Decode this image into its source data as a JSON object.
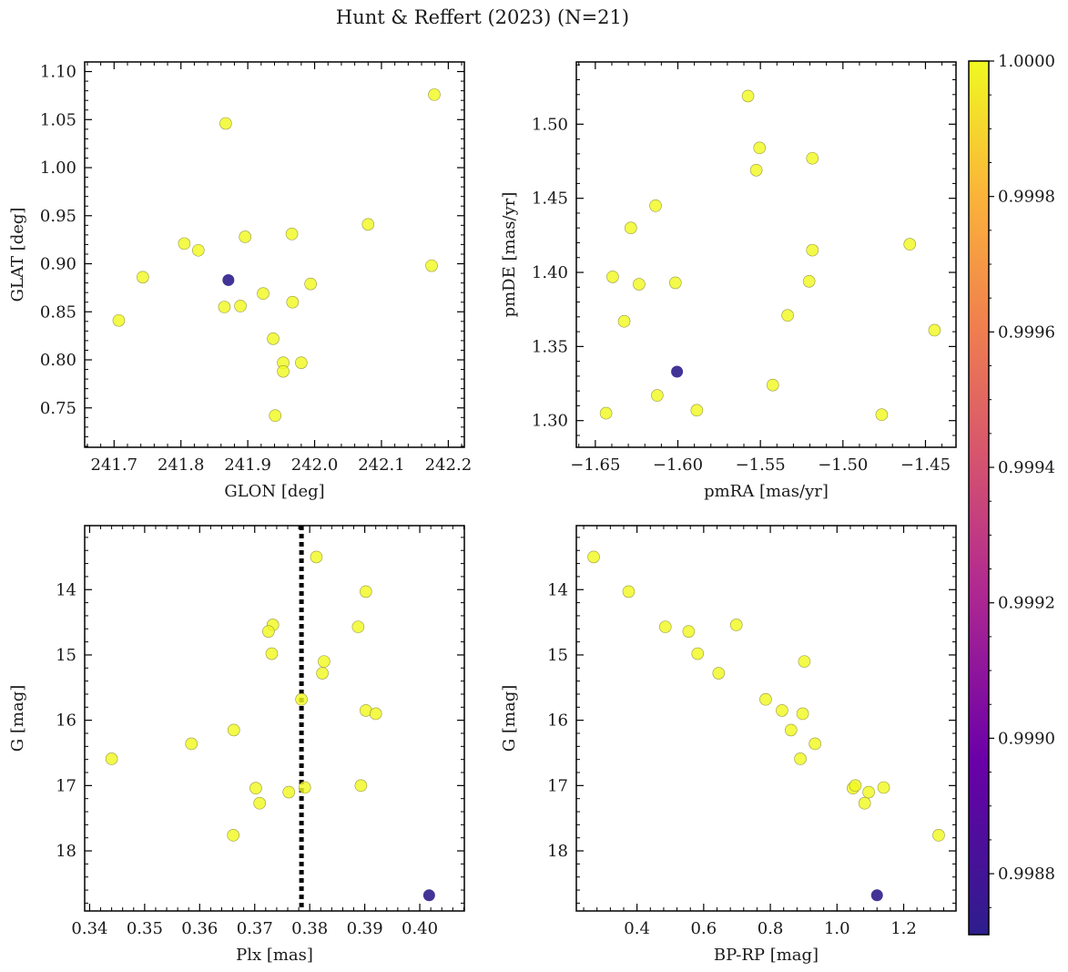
{
  "title": "Hunt & Reffert (2023) (N=21)",
  "colors": {
    "yellow": "#f0f921",
    "purple": "#2d1e8c",
    "point_edge": "#9a9a40",
    "dotted_line": "#000000",
    "colormap": "plasma"
  },
  "colorbar": {
    "min": 0.99871,
    "max": 1.0,
    "ticks": [
      0.9988,
      0.999,
      0.9992,
      0.9994,
      0.9996,
      0.9998,
      1.0
    ],
    "tick_labels": [
      "0.9988",
      "0.9990",
      "0.9992",
      "0.9994",
      "0.9996",
      "0.9998",
      "1.0000"
    ]
  },
  "chart_data": [
    {
      "type": "scatter",
      "id": "glon-glat",
      "xlabel": "GLON [deg]",
      "ylabel": "GLAT [deg]",
      "xlim": [
        241.656,
        242.224
      ],
      "ylim": [
        0.709,
        1.11
      ],
      "xticks": [
        241.7,
        241.8,
        241.9,
        242.0,
        242.1,
        242.2
      ],
      "xtick_labels": [
        "241.7",
        "241.8",
        "241.9",
        "242.0",
        "242.1",
        "242.2"
      ],
      "yticks": [
        0.75,
        0.8,
        0.85,
        0.9,
        0.95,
        1.0,
        1.05,
        1.1
      ],
      "ytick_labels": [
        "0.75",
        "0.80",
        "0.85",
        "0.90",
        "0.95",
        "1.00",
        "1.05",
        "1.10"
      ],
      "invert_y": false,
      "x": [
        242.179,
        241.867,
        242.08,
        241.966,
        241.896,
        241.805,
        241.826,
        241.743,
        242.175,
        241.994,
        241.923,
        241.967,
        241.889,
        241.865,
        241.707,
        241.938,
        241.953,
        241.98,
        241.953,
        241.941,
        241.871
      ],
      "y": [
        1.076,
        1.046,
        0.941,
        0.931,
        0.928,
        0.921,
        0.914,
        0.886,
        0.898,
        0.879,
        0.869,
        0.86,
        0.856,
        0.855,
        0.841,
        0.822,
        0.797,
        0.797,
        0.788,
        0.742,
        0.883
      ],
      "c": [
        1,
        1,
        1,
        1,
        1,
        1,
        1,
        1,
        1,
        1,
        1,
        1,
        1,
        1,
        1,
        1,
        1,
        1,
        1,
        1,
        0.99871
      ]
    },
    {
      "type": "scatter",
      "id": "pm",
      "xlabel": "pmRA [mas/yr]",
      "ylabel": "pmDE [mas/yr]",
      "xlim": [
        -1.6615,
        -1.4315
      ],
      "ylim": [
        1.282,
        1.542
      ],
      "xticks": [
        -1.65,
        -1.6,
        -1.55,
        -1.5,
        -1.45
      ],
      "xtick_labels": [
        "−1.65",
        "−1.60",
        "−1.55",
        "−1.50",
        "−1.45"
      ],
      "yticks": [
        1.3,
        1.35,
        1.4,
        1.45,
        1.5
      ],
      "ytick_labels": [
        "1.30",
        "1.35",
        "1.40",
        "1.45",
        "1.50"
      ],
      "invert_y": false,
      "x": [
        -1.5575,
        -1.5505,
        -1.5525,
        -1.5185,
        -1.6135,
        -1.6285,
        -1.5185,
        -1.6395,
        -1.6235,
        -1.6015,
        -1.5205,
        -1.4595,
        -1.5335,
        -1.6325,
        -1.4445,
        -1.6125,
        -1.5425,
        -1.5885,
        -1.6435,
        -1.4765,
        -1.6005
      ],
      "y": [
        1.519,
        1.484,
        1.469,
        1.477,
        1.445,
        1.43,
        1.415,
        1.397,
        1.392,
        1.393,
        1.394,
        1.419,
        1.371,
        1.367,
        1.361,
        1.317,
        1.324,
        1.307,
        1.305,
        1.304,
        1.333
      ],
      "c": [
        1,
        1,
        1,
        1,
        1,
        1,
        1,
        1,
        1,
        1,
        1,
        1,
        1,
        1,
        1,
        1,
        1,
        1,
        1,
        1,
        0.99871
      ]
    },
    {
      "type": "scatter",
      "id": "plx-g",
      "xlabel": "Plx [mas]",
      "ylabel": "G [mag]",
      "xlim": [
        0.3391,
        0.4081
      ],
      "ylim": [
        13.02,
        18.92
      ],
      "xticks": [
        0.34,
        0.35,
        0.36,
        0.37,
        0.38,
        0.39,
        0.4
      ],
      "xtick_labels": [
        "0.34",
        "0.35",
        "0.36",
        "0.37",
        "0.38",
        "0.39",
        "0.40"
      ],
      "yticks": [
        14,
        15,
        16,
        17,
        18
      ],
      "ytick_labels": [
        "14",
        "15",
        "16",
        "17",
        "18"
      ],
      "invert_y": true,
      "vline": 0.3785,
      "x": [
        0.3812,
        0.3902,
        0.3733,
        0.3725,
        0.3888,
        0.3731,
        0.3826,
        0.3823,
        0.3785,
        0.3902,
        0.392,
        0.3662,
        0.3585,
        0.344,
        0.3893,
        0.3702,
        0.3791,
        0.3762,
        0.3709,
        0.3661,
        0.4017
      ],
      "y": [
        13.5,
        14.03,
        14.54,
        14.64,
        14.57,
        14.98,
        15.1,
        15.28,
        15.68,
        15.85,
        15.9,
        16.15,
        16.36,
        16.59,
        17.0,
        17.04,
        17.03,
        17.1,
        17.27,
        17.76,
        18.68
      ],
      "c": [
        1,
        1,
        1,
        1,
        1,
        1,
        1,
        1,
        1,
        1,
        1,
        1,
        1,
        1,
        1,
        1,
        1,
        1,
        1,
        1,
        0.99871
      ]
    },
    {
      "type": "scatter",
      "id": "cmd",
      "xlabel": "BP-RP [mag]",
      "ylabel": "G [mag]",
      "xlim": [
        0.218,
        1.357
      ],
      "ylim": [
        13.02,
        18.92
      ],
      "xticks": [
        0.4,
        0.6,
        0.8,
        1.0,
        1.2
      ],
      "xtick_labels": [
        "0.4",
        "0.6",
        "0.8",
        "1.0",
        "1.2"
      ],
      "yticks": [
        14,
        15,
        16,
        17,
        18
      ],
      "ytick_labels": [
        "14",
        "15",
        "16",
        "17",
        "18"
      ],
      "invert_y": true,
      "x": [
        0.27,
        0.375,
        0.485,
        0.555,
        0.698,
        0.582,
        0.902,
        0.645,
        0.786,
        0.835,
        0.897,
        0.862,
        0.934,
        0.89,
        1.048,
        1.055,
        1.14,
        1.095,
        1.083,
        1.305,
        1.12
      ],
      "y": [
        13.5,
        14.03,
        14.57,
        14.64,
        14.54,
        14.98,
        15.1,
        15.28,
        15.68,
        15.85,
        15.9,
        16.15,
        16.36,
        16.59,
        17.04,
        17.0,
        17.03,
        17.1,
        17.27,
        17.76,
        18.68
      ],
      "c": [
        1,
        1,
        1,
        1,
        1,
        1,
        1,
        1,
        1,
        1,
        1,
        1,
        1,
        1,
        1,
        1,
        1,
        1,
        1,
        1,
        0.99871
      ]
    }
  ]
}
